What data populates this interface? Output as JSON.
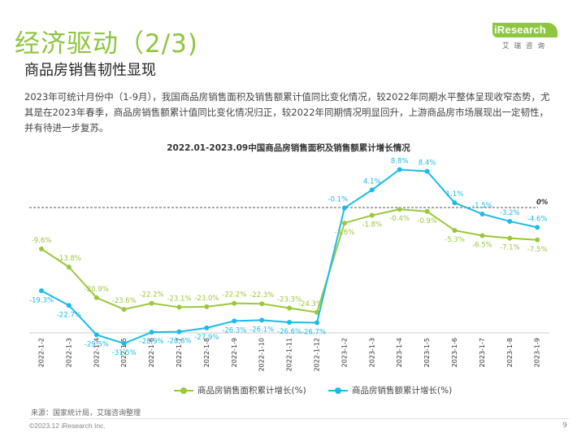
{
  "header": {
    "title": "经济驱动（2/3)",
    "subtitle": "商品房销售韧性显现",
    "intro": "2023年可统计月份中（1-9月），我国商品房销售面积及销售额累计值同比变化情况，较2022年同期水平整体呈现收窄态势，尤其是在2023年春季，商品房销售额累计值同比变化情况归正，较2022年同期情况明显回升，上游商品房市场展现出一定韧性，并有待进一步复苏。"
  },
  "logo": {
    "text": "iResearch",
    "sub": "艾瑞咨询"
  },
  "colors": {
    "title_green": "#8DC63F",
    "area_series": "#99C93C",
    "amount_series": "#1BBCE8"
  },
  "chart_data": {
    "type": "line",
    "title": "2022.01-2023.09中国商品房销售面积及销售额累计增长情况",
    "categories": [
      "2022-1-2",
      "2022-1-3",
      "2022-1-4",
      "2022-1-5",
      "2022-1-6",
      "2022-1-7",
      "2022-1-8",
      "2022-1-9",
      "2022-1-10",
      "2022-1-11",
      "2022-1-12",
      "2023-1-2",
      "2023-1-3",
      "2023-1-4",
      "2023-1-5",
      "2023-1-6",
      "2023-1-7",
      "2023-1-8",
      "2023-1-9"
    ],
    "series": [
      {
        "name": "商品房销售面积累计增长(%)",
        "values": [
          -9.6,
          -13.8,
          -20.9,
          -23.6,
          -22.2,
          -23.1,
          -23.0,
          -22.2,
          -22.3,
          -23.3,
          -24.3,
          -3.6,
          -1.8,
          -0.4,
          -0.9,
          -5.3,
          -6.5,
          -7.1,
          -7.5
        ],
        "labels": [
          "-9.6%",
          "-13.8%",
          "-20.9%",
          "-23.6%",
          "-22.2%",
          "-23.1%",
          "-23.0%",
          "-22.2%",
          "-22.3%",
          "-23.3%",
          "-24.3%",
          "-3.6%",
          "-1.8%",
          "-0.4%",
          "-0.9%",
          "-5.3%",
          "-6.5%",
          "-7.1%",
          "-7.5%"
        ]
      },
      {
        "name": "商品房销售额累计增长(%)",
        "values": [
          -19.3,
          -22.7,
          -29.5,
          -31.5,
          -28.9,
          -28.8,
          -27.9,
          -26.3,
          -26.1,
          -26.6,
          -26.7,
          -0.1,
          4.1,
          8.8,
          8.4,
          1.1,
          -1.5,
          -3.2,
          -4.6
        ],
        "labels": [
          "-19.3%",
          "-22.7%",
          "-29.5%",
          "-31.5%",
          "-28.9%",
          "-28.8%",
          "-27.9%",
          "-26.3%",
          "-26.1%",
          "-26.6%",
          "-26.7%",
          "-0.1%",
          "4.1%",
          "8.8%",
          "8.4%",
          "1.1%",
          "-1.5%",
          "-3.2%",
          "-4.6%"
        ]
      }
    ],
    "zero_label": "0%",
    "ylim": [
      -33,
      10
    ],
    "grid": false,
    "legend_position": "bottom"
  },
  "footer": {
    "source": "来源：国家统计局，艾瑞咨询整理",
    "copyright": "©2023.12 iResearch Inc.",
    "page": "9"
  }
}
